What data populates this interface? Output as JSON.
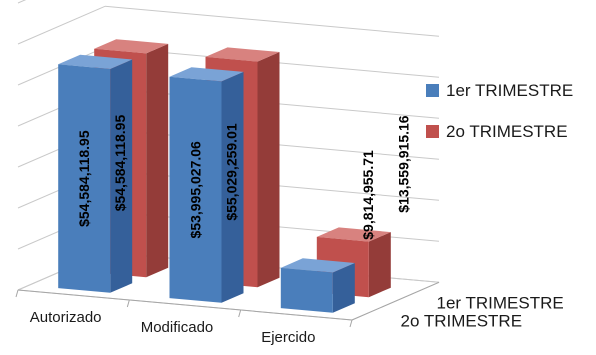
{
  "chart_data": {
    "type": "bar",
    "subtype": "3d-clustered-column",
    "categories": [
      "Autorizado",
      "Modificado",
      "Ejercido"
    ],
    "series": [
      {
        "name": "1er TRIMESTRE",
        "values": [
          54584118.95,
          53995027.06,
          9814955.71
        ],
        "labels": [
          "$54,584,118.95",
          "$53,995,027.06",
          "$9,814,955.71"
        ]
      },
      {
        "name": "2o TRIMESTRE",
        "values": [
          54584118.95,
          55029259.01,
          13559915.16
        ],
        "labels": [
          "$54,584,118.95",
          "$55,029,259.01",
          "$13,559,915.16"
        ]
      }
    ],
    "depth_labels": [
      "1er TRIMESTRE",
      "2o TRIMESTRE"
    ],
    "ylim": [
      0,
      70000000
    ],
    "grid": true,
    "legend_position": "right",
    "colors": {
      "series1_front": "#4a7ebb",
      "series1_side": "#35609a",
      "series1_top": "#7aa3d6",
      "series2_front": "#c0504d",
      "series2_side": "#943c39",
      "series2_top": "#d8827f"
    }
  }
}
